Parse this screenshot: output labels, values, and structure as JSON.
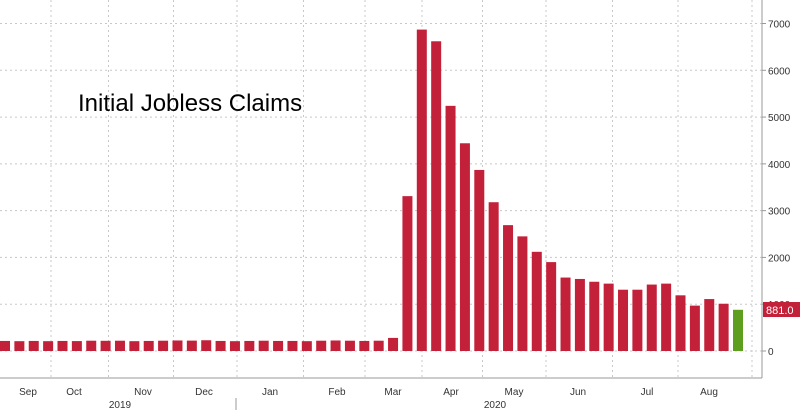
{
  "chart_data": {
    "type": "bar",
    "title": "Initial Jobless Claims",
    "xlabel": "",
    "ylabel": "",
    "ylim": [
      0,
      7000
    ],
    "yticks": [
      0,
      1000,
      2000,
      3000,
      4000,
      5000,
      6000,
      7000
    ],
    "grid": true,
    "legend": "none",
    "x_month_labels": [
      "Sep",
      "Oct",
      "Nov",
      "Dec",
      "Jan",
      "Feb",
      "Mar",
      "Apr",
      "May",
      "Jun",
      "Jul",
      "Aug"
    ],
    "x_year_labels": [
      "2019",
      "2020"
    ],
    "last_value_label": "881.0",
    "colors": {
      "bar": "#c3203a",
      "last_bar": "#5e9e1e",
      "label_bg": "#c3203a",
      "grid": "#c8c8c8"
    },
    "series": [
      {
        "values": [
          215,
          210,
          215,
          210,
          215,
          212,
          220,
          218,
          220,
          210,
          215,
          220,
          225,
          222,
          230,
          215,
          210,
          215,
          220,
          215,
          215,
          210,
          220,
          225,
          220,
          215,
          220,
          280,
          3310,
          6870,
          6620,
          5240,
          4440,
          3870,
          3180,
          2690,
          2450,
          2120,
          1900,
          1570,
          1540,
          1480,
          1440,
          1310,
          1310,
          1420,
          1440,
          1190,
          970,
          1110,
          1010,
          881
        ]
      }
    ]
  }
}
